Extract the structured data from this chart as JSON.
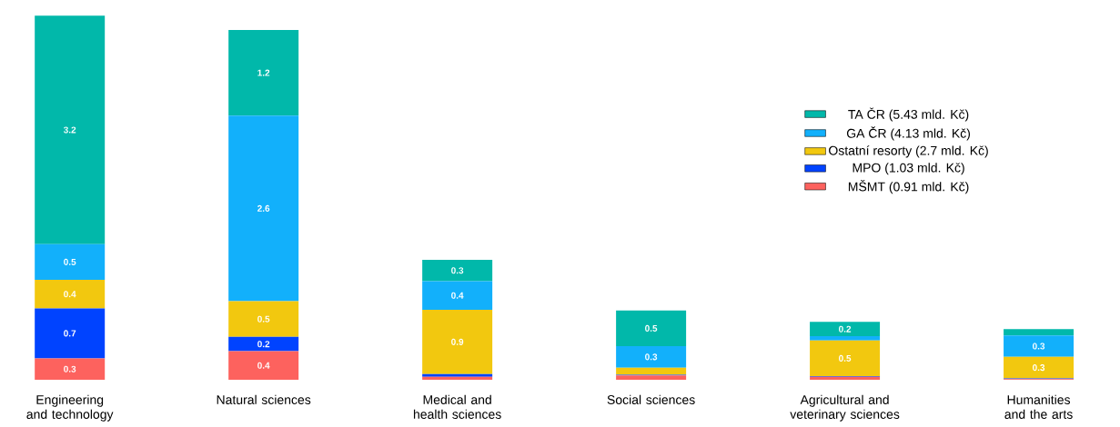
{
  "chart_data": {
    "type": "bar",
    "stacked": true,
    "legend": "right",
    "categories": [
      "Engineering and technology",
      "Natural sciences",
      "Medical and health sciences",
      "Social sciences",
      "Agricultural and veterinary sciences",
      "Humanities and the arts"
    ],
    "series": [
      {
        "name": "MŠMT (0.91 mld. Kč)",
        "color": "#fd625e",
        "values": [
          0.3,
          0.4,
          0.04,
          0.06,
          0.04,
          0.01
        ],
        "value_labels": [
          "0.3",
          "0.4",
          null,
          null,
          null,
          null
        ]
      },
      {
        "name": "MPO (1.03 mld. Kč)",
        "color": "#0043ff",
        "values": [
          0.7,
          0.2,
          0.04,
          0.01,
          0.01,
          0.01
        ],
        "value_labels": [
          "0.7",
          "0.2",
          null,
          null,
          null,
          null
        ]
      },
      {
        "name": "Ostatní resorty (2.7 mld. Kč)",
        "color": "#f2c80f",
        "values": [
          0.4,
          0.5,
          0.9,
          0.1,
          0.5,
          0.3
        ],
        "value_labels": [
          "0.4",
          "0.5",
          "0.9",
          null,
          "0.5",
          "0.3"
        ]
      },
      {
        "name": "GA ČR (4.13 mld. Kč)",
        "color": "#12b0fb",
        "values": [
          0.5,
          2.6,
          0.4,
          0.3,
          0.06,
          0.3
        ],
        "value_labels": [
          "0.5",
          "2.6",
          "0.4",
          "0.3",
          null,
          "0.3"
        ]
      },
      {
        "name": "TA ČR (5.43 mld. Kč)",
        "color": "#01b8aa",
        "values": [
          3.2,
          1.2,
          0.3,
          0.5,
          0.2,
          0.09
        ],
        "value_labels": [
          "3.2",
          "1.2",
          "0.3",
          "0.5",
          "0.2",
          null
        ]
      }
    ]
  }
}
